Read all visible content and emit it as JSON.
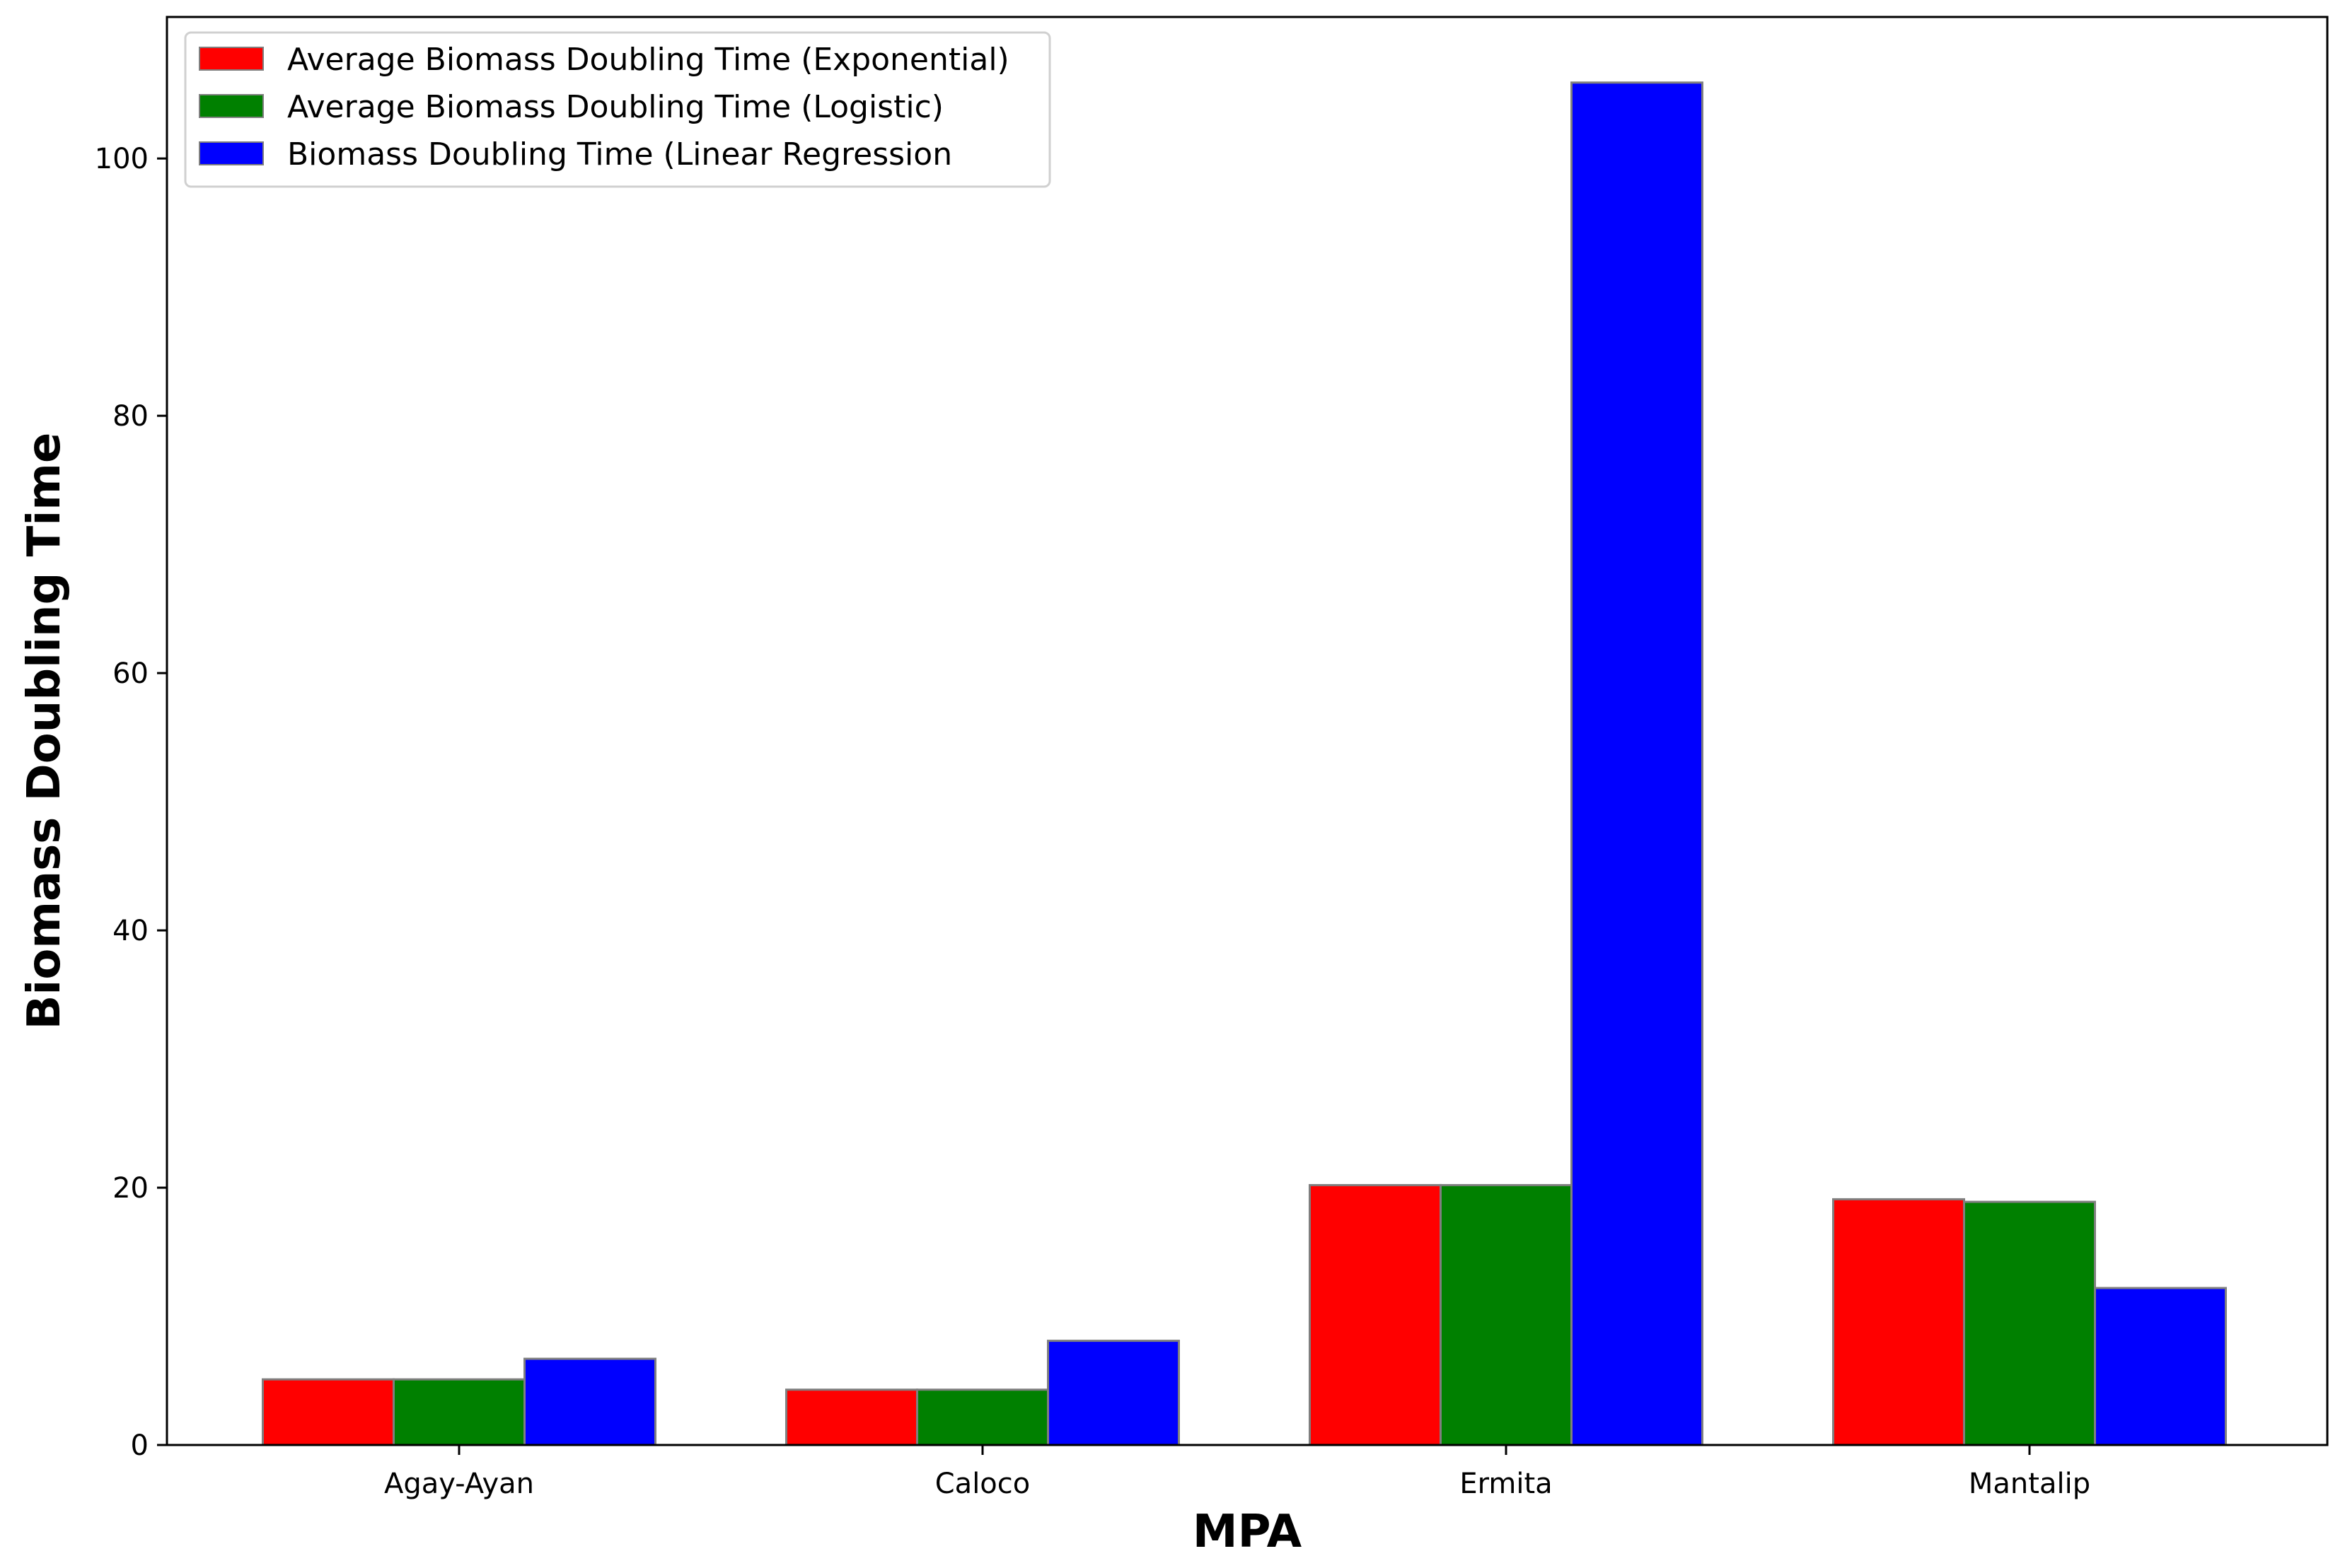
{
  "chart_data": {
    "type": "bar",
    "title": "",
    "xlabel": "MPA",
    "ylabel": "Biomass Doubling Time",
    "categories": [
      "Agay-Ayan",
      "Caloco",
      "Ermita",
      "Mantalip"
    ],
    "series": [
      {
        "name": "Average Biomass Doubling Time (Exponential)",
        "color": "#ff0000",
        "values": [
          5.1,
          4.3,
          20.2,
          19.1
        ]
      },
      {
        "name": "Average Biomass Doubling Time (Logistic)",
        "color": "#008000",
        "values": [
          5.1,
          4.3,
          20.2,
          18.9
        ]
      },
      {
        "name": "Biomass Doubling Time (Linear Regression",
        "color": "#0000ff",
        "values": [
          6.7,
          8.1,
          105.9,
          12.2
        ]
      }
    ],
    "ylim": [
      0,
      111
    ],
    "yticks": [
      0,
      20,
      40,
      60,
      80,
      100
    ],
    "grid": false,
    "legend_position": "top-left"
  }
}
